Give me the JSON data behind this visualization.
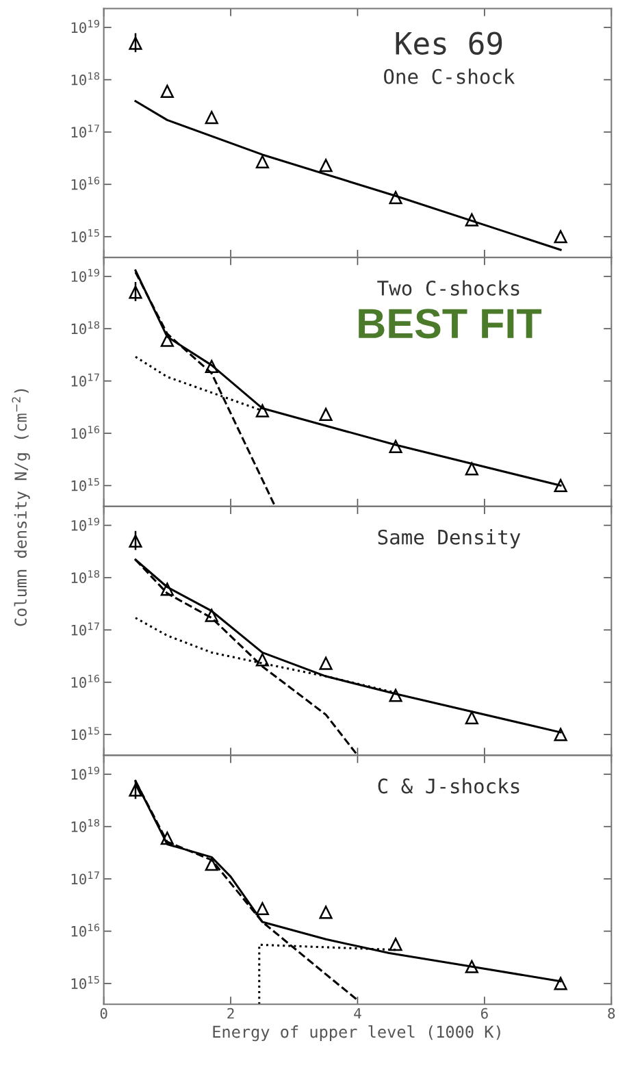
{
  "chart_data": [
    {
      "type": "line",
      "annotations": [
        "Kes 69",
        "One C-shock"
      ],
      "xlim": [
        0,
        8
      ],
      "xticks": [
        0,
        2,
        4,
        6,
        8
      ],
      "ylim": [
        400000000000000.0,
        2.3e+19
      ],
      "log": true,
      "tick_labels": "y",
      "yticks": [
        {
          "value": 1000000000000000.0,
          "label": "10$^{15}$"
        },
        {
          "value": 1e+16,
          "label": "10$^{16}$"
        },
        {
          "value": 1e+17,
          "label": "10$^{17}$"
        },
        {
          "value": 1e+18,
          "label": "10$^{18}$"
        },
        {
          "value": 1e+19,
          "label": "10$^{19}$"
        }
      ],
      "series": [
        {
          "type": "scatter",
          "marker": "triangle",
          "color": "#000000",
          "x": [
            0.5,
            1.0,
            1.7,
            2.5,
            3.5,
            4.6,
            5.8,
            7.2
          ],
          "values": [
            5e+18,
            6e+17,
            1.9e+17,
            2.7e+16,
            2.3e+16,
            5600000000000000.0,
            2100000000000000.0,
            1000000000000000.0
          ],
          "errors": [
            [
              3.5e+18,
              7.5e+18
            ],
            null,
            null,
            null,
            null,
            null,
            null,
            null
          ]
        },
        {
          "line_style": "solid",
          "color": "#000000",
          "x": [
            0.5,
            1.0,
            2.5,
            4.6,
            7.2
          ],
          "values": [
            3.9e+17,
            1.7e+17,
            3.7e+16,
            6000000000000000.0,
            560000000000000.0
          ]
        }
      ]
    },
    {
      "type": "line",
      "annotations": [
        "Two C-shocks",
        "BEST FIT"
      ],
      "xlim": [
        0,
        8
      ],
      "xticks": [
        0,
        2,
        4,
        6,
        8
      ],
      "ylim": [
        400000000000000.0,
        2.3e+19
      ],
      "log": true,
      "tick_labels": "y",
      "yticks": [
        {
          "value": 1000000000000000.0,
          "label": "10$^{15}$"
        },
        {
          "value": 1e+16,
          "label": "10$^{16}$"
        },
        {
          "value": 1e+17,
          "label": "10$^{17}$"
        },
        {
          "value": 1e+18,
          "label": "10$^{18}$"
        },
        {
          "value": 1e+19,
          "label": "10$^{19}$"
        }
      ],
      "series": [
        {
          "type": "scatter",
          "marker": "triangle",
          "color": "#000000",
          "x": [
            0.5,
            1.0,
            1.7,
            2.5,
            3.5,
            4.6,
            5.8,
            7.2
          ],
          "values": [
            5e+18,
            6e+17,
            1.9e+17,
            2.7e+16,
            2.3e+16,
            5600000000000000.0,
            2100000000000000.0,
            1000000000000000.0
          ],
          "errors": [
            [
              3.5e+18,
              7.5e+18
            ],
            null,
            null,
            null,
            null,
            null,
            null,
            null
          ]
        },
        {
          "line_style": "solid",
          "color": "#000000",
          "x": [
            0.5,
            1.0,
            1.7,
            2.5,
            4.6,
            7.2
          ],
          "values": [
            1.3e+19,
            7e+17,
            2e+17,
            3e+16,
            6000000000000000.0,
            1000000000000000.0
          ]
        },
        {
          "line_style": "dashed",
          "color": "#000000",
          "x": [
            0.5,
            1.0,
            1.7,
            2.7
          ],
          "values": [
            1.2e+19,
            8e+17,
            1.4e+17,
            400000000000000.0
          ]
        },
        {
          "line_style": "dotted",
          "color": "#000000",
          "x": [
            0.5,
            1.0,
            1.7,
            2.5
          ],
          "values": [
            2.9e+17,
            1.2e+17,
            6e+16,
            2.7e+16
          ]
        }
      ]
    },
    {
      "type": "line",
      "annotations": [
        "Same Density"
      ],
      "ylabel": "Column density N/g (cm$^{−2}$)",
      "xlim": [
        0,
        8
      ],
      "xticks": [
        0,
        2,
        4,
        6,
        8
      ],
      "ylim": [
        400000000000000.0,
        2.3e+19
      ],
      "log": true,
      "tick_labels": "y",
      "yticks": [
        {
          "value": 1000000000000000.0,
          "label": "10$^{15}$"
        },
        {
          "value": 1e+16,
          "label": "10$^{16}$"
        },
        {
          "value": 1e+17,
          "label": "10$^{17}$"
        },
        {
          "value": 1e+18,
          "label": "10$^{18}$"
        },
        {
          "value": 1e+19,
          "label": "10$^{19}$"
        }
      ],
      "series": [
        {
          "type": "scatter",
          "marker": "triangle",
          "color": "#000000",
          "x": [
            0.5,
            1.0,
            1.7,
            2.5,
            3.5,
            4.6,
            5.8,
            7.2
          ],
          "values": [
            5e+18,
            6e+17,
            1.9e+17,
            2.7e+16,
            2.3e+16,
            5600000000000000.0,
            2100000000000000.0,
            1000000000000000.0
          ],
          "errors": [
            [
              3.5e+18,
              7.5e+18
            ],
            null,
            null,
            null,
            null,
            null,
            null,
            null
          ]
        },
        {
          "line_style": "solid",
          "color": "#000000",
          "x": [
            0.5,
            1.0,
            1.7,
            2.5,
            3.5,
            4.6,
            7.2
          ],
          "values": [
            2.2e+18,
            6.6e+17,
            2.3e+17,
            3.7e+16,
            1.3e+16,
            6000000000000000.0,
            1100000000000000.0
          ]
        },
        {
          "line_style": "dashed",
          "color": "#000000",
          "x": [
            0.5,
            1.0,
            1.7,
            2.5,
            3.5,
            4.0
          ],
          "values": [
            2.2e+18,
            5e+17,
            1.7e+17,
            2e+16,
            2400000000000000.0,
            400000000000000.0
          ]
        },
        {
          "line_style": "dotted",
          "color": "#000000",
          "x": [
            0.5,
            1.0,
            1.7,
            2.5,
            3.5,
            4.6
          ],
          "values": [
            1.7e+17,
            7.8e+16,
            3.7e+16,
            2.3e+16,
            1.3e+16,
            6300000000000000.0
          ]
        }
      ]
    },
    {
      "type": "line",
      "annotations": [
        "C & J-shocks"
      ],
      "xlabel": "Energy of upper level (1000 K)",
      "xlim": [
        0,
        8
      ],
      "xticks": [
        0,
        2,
        4,
        6,
        8
      ],
      "ylim": [
        400000000000000.0,
        2.3e+19
      ],
      "log": true,
      "yticks": [
        {
          "value": 1000000000000000.0,
          "label": "10$^{15}$"
        },
        {
          "value": 1e+16,
          "label": "10$^{16}$"
        },
        {
          "value": 1e+17,
          "label": "10$^{17}$"
        },
        {
          "value": 1e+18,
          "label": "10$^{18}$"
        },
        {
          "value": 1e+19,
          "label": "10$^{19}$"
        }
      ],
      "series": [
        {
          "type": "scatter",
          "marker": "triangle",
          "color": "#000000",
          "x": [
            0.5,
            1.0,
            1.7,
            2.5,
            3.5,
            4.6,
            5.8,
            7.2
          ],
          "values": [
            5e+18,
            6e+17,
            1.9e+17,
            2.7e+16,
            2.3e+16,
            5600000000000000.0,
            2100000000000000.0,
            1000000000000000.0
          ],
          "errors": [
            [
              3.5e+18,
              7.5e+18
            ],
            null,
            null,
            null,
            null,
            null,
            null,
            null
          ]
        },
        {
          "line_style": "solid",
          "color": "#000000",
          "x": [
            0.5,
            1.0,
            1.7,
            2.0,
            2.5,
            3.5,
            4.5,
            5.8,
            7.2
          ],
          "values": [
            7.4e+18,
            4.6e+17,
            2.6e+17,
            1.1e+17,
            1.5e+16,
            7000000000000000.0,
            3800000000000000.0,
            2100000000000000.0,
            1100000000000000.0
          ]
        },
        {
          "line_style": "dashed",
          "color": "#000000",
          "x": [
            0.5,
            1.0,
            1.7,
            2.5,
            3.5,
            4.0
          ],
          "values": [
            7.4e+18,
            5.1e+17,
            2.3e+17,
            1.5e+16,
            1500000000000000.0,
            480000000000000.0
          ]
        },
        {
          "line_style": "dotted",
          "color": "#000000",
          "x": [
            2.45,
            2.45,
            4.6
          ],
          "values": [
            400000000000000.0,
            5500000000000000.0,
            4400000000000000.0
          ]
        }
      ]
    }
  ]
}
